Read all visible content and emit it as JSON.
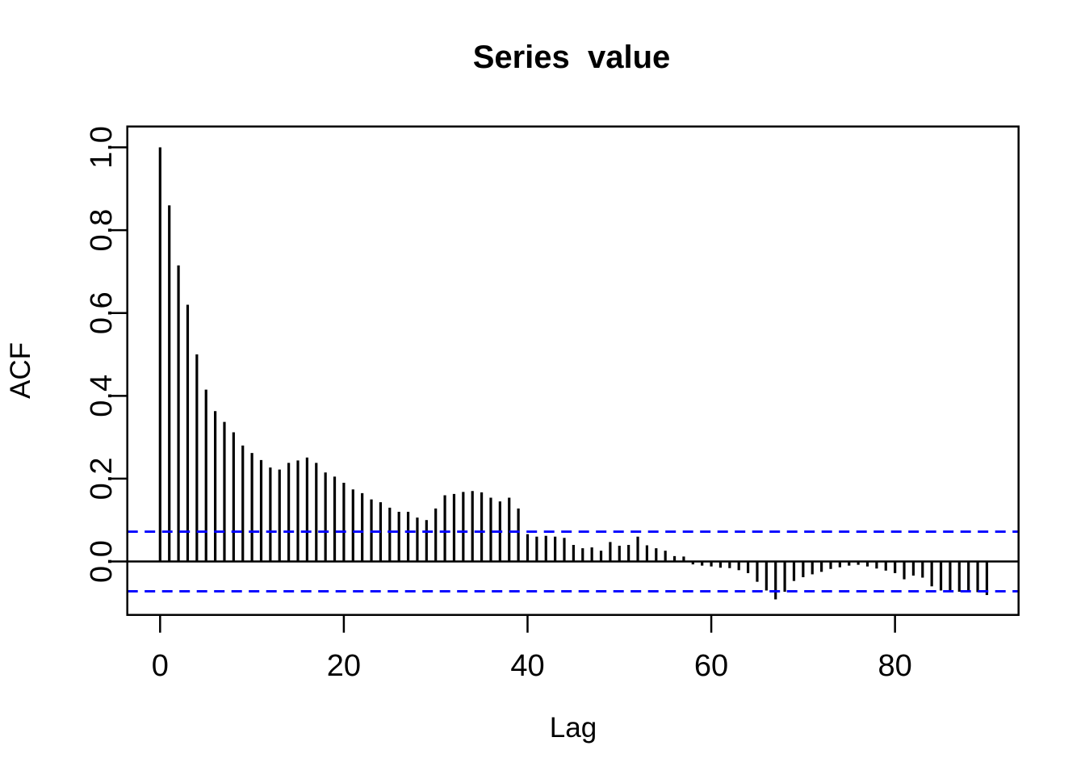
{
  "chart_data": {
    "type": "bar",
    "subtype": "acf-stem-plot",
    "title": "Series  value",
    "xlabel": "Lag",
    "ylabel": "ACF",
    "lag_start": 0,
    "values": [
      1.0,
      0.86,
      0.715,
      0.62,
      0.5,
      0.415,
      0.363,
      0.337,
      0.312,
      0.28,
      0.262,
      0.245,
      0.227,
      0.222,
      0.238,
      0.244,
      0.251,
      0.238,
      0.215,
      0.205,
      0.19,
      0.174,
      0.165,
      0.15,
      0.143,
      0.13,
      0.12,
      0.12,
      0.106,
      0.1,
      0.128,
      0.16,
      0.163,
      0.168,
      0.17,
      0.167,
      0.154,
      0.145,
      0.154,
      0.128,
      0.066,
      0.06,
      0.062,
      0.06,
      0.057,
      0.04,
      0.032,
      0.034,
      0.026,
      0.047,
      0.038,
      0.04,
      0.06,
      0.039,
      0.032,
      0.026,
      0.013,
      0.012,
      -0.007,
      -0.01,
      -0.012,
      -0.015,
      -0.016,
      -0.021,
      -0.028,
      -0.049,
      -0.07,
      -0.0915,
      -0.073,
      -0.047,
      -0.038,
      -0.031,
      -0.025,
      -0.018,
      -0.014,
      -0.01,
      -0.008,
      -0.012,
      -0.017,
      -0.022,
      -0.028,
      -0.043,
      -0.034,
      -0.039,
      -0.06,
      -0.07,
      -0.072,
      -0.073,
      -0.073,
      -0.074,
      -0.081
    ],
    "confidence_bound": 0.072,
    "x_ticks": [
      0,
      20,
      40,
      60,
      80
    ],
    "x_tick_labels": [
      "0",
      "20",
      "40",
      "60",
      "80"
    ],
    "y_ticks": [
      0.0,
      0.2,
      0.4,
      0.6,
      0.8,
      1.0
    ],
    "y_tick_labels": [
      "0.0",
      "0.2",
      "0.4",
      "0.6",
      "0.8",
      "1.0"
    ],
    "xlim": [
      -3.57,
      93.45
    ],
    "ylim": [
      -0.129,
      1.0503
    ],
    "grid": false,
    "legend": null,
    "colors": {
      "bars": "#000000",
      "zero_line": "#000000",
      "confidence_lines": "#0000FF",
      "frame": "#000000",
      "background": "#FFFFFF"
    }
  }
}
